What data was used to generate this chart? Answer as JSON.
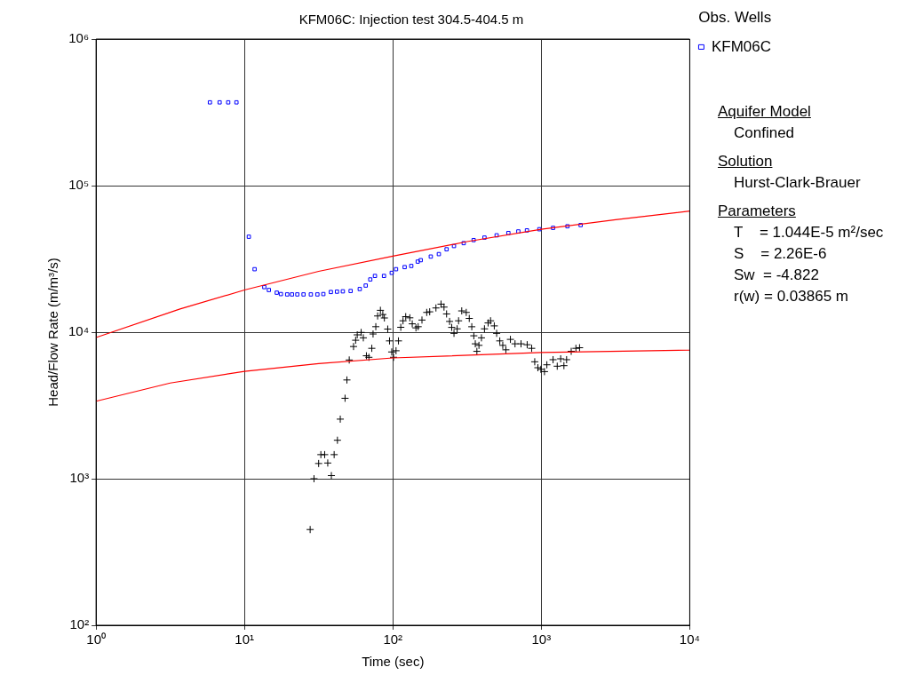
{
  "chart_data": {
    "type": "scatter",
    "title": "KFM06C: Injection test 304.5-404.5 m",
    "xlabel": "Time (sec)",
    "ylabel": "Head/Flow Rate (m/m³/s)",
    "log": "xy",
    "grid": true,
    "legend": "top right",
    "legend_title": "Obs. Wells",
    "xlim": [
      1,
      10000
    ],
    "xticks": [
      {
        "value": 1,
        "label": "10⁰"
      },
      {
        "value": 10,
        "label": "10¹"
      },
      {
        "value": 100,
        "label": "10²"
      },
      {
        "value": 1000,
        "label": "10³"
      },
      {
        "value": 10000,
        "label": "10⁴"
      }
    ],
    "ylim": [
      100,
      1000000
    ],
    "yticks": [
      {
        "value": 100,
        "label": "10²"
      },
      {
        "value": 1000,
        "label": "10³"
      },
      {
        "value": 10000,
        "label": "10⁴"
      },
      {
        "value": 100000,
        "label": "10⁵"
      },
      {
        "value": 1000000,
        "label": "10⁶"
      }
    ],
    "series": [
      {
        "type": "line",
        "color": "#ff0000",
        "marker": "none",
        "x": [
          1,
          3.68,
          10,
          31.6,
          100,
          316,
          1000,
          3162,
          10000
        ],
        "values": [
          9200,
          14400,
          19400,
          26000,
          33000,
          41500,
          50400,
          58500,
          67100
        ]
      },
      {
        "type": "line",
        "color": "#ff0000",
        "marker": "none",
        "x": [
          1,
          3.16,
          10,
          31.6,
          100,
          1000,
          10000
        ],
        "values": [
          3380,
          4500,
          5400,
          6100,
          6670,
          7260,
          7540
        ]
      },
      {
        "name": "KFM06C",
        "color": "#0000ff",
        "marker": "square",
        "x": [
          5.85,
          6.8,
          7.77,
          8.83,
          10.7,
          11.7,
          13.6,
          14.6,
          16.5,
          17.6,
          19.4,
          20.9,
          22.7,
          25,
          28,
          31,
          34,
          38.2,
          42,
          46,
          51.9,
          59.8,
          65.6,
          70.4,
          75.7,
          87.1,
          98.2,
          105,
          120,
          133,
          147,
          154,
          180,
          204,
          230,
          258,
          300,
          350,
          414,
          500,
          600,
          700,
          800,
          970,
          1200,
          1500,
          1840
        ],
        "values": [
          370000,
          370000,
          370000,
          370000,
          44800,
          26900,
          20300,
          19400,
          18600,
          18200,
          18100,
          18100,
          18100,
          18100,
          18100,
          18100,
          18200,
          18800,
          18900,
          19000,
          19100,
          19700,
          20800,
          22900,
          24200,
          24200,
          25400,
          26900,
          27800,
          28300,
          30300,
          31000,
          32800,
          34100,
          36800,
          38700,
          40500,
          42500,
          44200,
          45800,
          47500,
          48700,
          49500,
          50400,
          51500,
          52800,
          53800
        ]
      },
      {
        "color": "#000000",
        "marker": "cross",
        "x": [
          27.7,
          29.4,
          31.6,
          32.7,
          34.7,
          36.4,
          38.5,
          40.2,
          42.3,
          44.2,
          47.6,
          49,
          50.8,
          54.3,
          56.1,
          57.5,
          61.1,
          63.2,
          66.3,
          68.9,
          72.1,
          73.5,
          76.7,
          78.9,
          82.4,
          85.5,
          87.6,
          92.3,
          94.9,
          98.2,
          101,
          105,
          109,
          113,
          117,
          122,
          130,
          135,
          143,
          148,
          157,
          169,
          177,
          195,
          211,
          221,
          230,
          241,
          249,
          258,
          271,
          277,
          291,
          312,
          327,
          340,
          351,
          359,
          368,
          380,
          395,
          414,
          438,
          455,
          482,
          500,
          525,
          550,
          577,
          619,
          665,
          730,
          803,
          861,
          903,
          948,
          993,
          1050,
          1090,
          1200,
          1280,
          1350,
          1420,
          1480,
          1590,
          1710,
          1810
        ],
        "values": [
          450,
          1000,
          1270,
          1460,
          1460,
          1280,
          1050,
          1460,
          1830,
          2550,
          3540,
          4720,
          6460,
          7980,
          8810,
          9590,
          9960,
          9150,
          6900,
          6740,
          7760,
          9720,
          10900,
          12900,
          14100,
          13200,
          12500,
          10500,
          8720,
          7330,
          6740,
          7470,
          8720,
          10800,
          11960,
          12760,
          12530,
          11400,
          10700,
          10900,
          12100,
          13640,
          13770,
          14630,
          15540,
          14830,
          13320,
          11840,
          10780,
          9820,
          10540,
          11960,
          13970,
          13640,
          12410,
          10890,
          9450,
          8330,
          7400,
          8130,
          9150,
          10540,
          11560,
          11960,
          11040,
          9820,
          8720,
          8130,
          7580,
          8930,
          8330,
          8330,
          8210,
          7760,
          6280,
          5720,
          5580,
          5380,
          5990,
          6490,
          5860,
          6580,
          5910,
          6490,
          7400,
          7760,
          7830
        ]
      }
    ],
    "annotations": [
      "Aquifer Model",
      "Confined",
      "Solution",
      "Hurst-Clark-Brauer",
      "Parameters",
      "T    = 1.044E-5 m²/sec",
      "S    = 2.26E-6",
      "Sw  = -4.822",
      "r(w) = 0.03865 m"
    ]
  }
}
